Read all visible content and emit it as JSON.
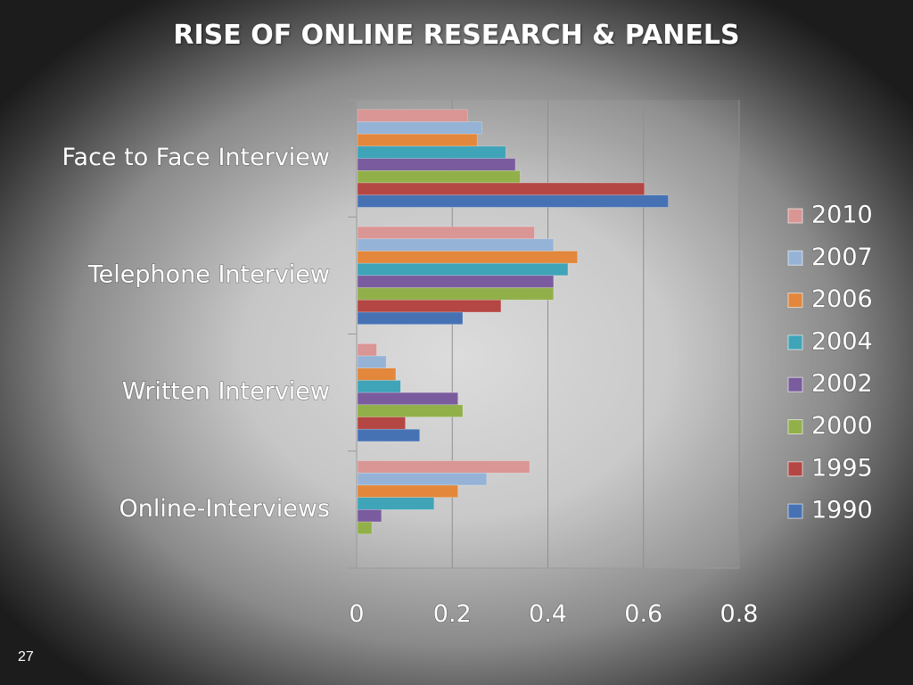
{
  "slide": {
    "title": "RISE OF ONLINE RESEARCH & PANELS",
    "number": "27"
  },
  "chart_data": {
    "type": "bar",
    "orientation": "horizontal",
    "title": "",
    "categories": [
      "Face to Face Interview",
      "Telephone Interview",
      "Written Interview",
      "Online-Interviews"
    ],
    "series": [
      {
        "name": "2010",
        "color": "#d99694",
        "values": [
          0.23,
          0.37,
          0.04,
          0.36
        ]
      },
      {
        "name": "2007",
        "color": "#95b3d7",
        "values": [
          0.26,
          0.41,
          0.06,
          0.27
        ]
      },
      {
        "name": "2006",
        "color": "#e2873b",
        "values": [
          0.25,
          0.46,
          0.08,
          0.21
        ]
      },
      {
        "name": "2004",
        "color": "#3fa4b8",
        "values": [
          0.31,
          0.44,
          0.09,
          0.16
        ]
      },
      {
        "name": "2002",
        "color": "#7a5c9e",
        "values": [
          0.33,
          0.41,
          0.21,
          0.05
        ]
      },
      {
        "name": "2000",
        "color": "#92b04a",
        "values": [
          0.34,
          0.41,
          0.22,
          0.03
        ]
      },
      {
        "name": "1995",
        "color": "#b44643",
        "values": [
          0.6,
          0.3,
          0.1,
          0
        ]
      },
      {
        "name": "1990",
        "color": "#4672b4",
        "values": [
          0.65,
          0.22,
          0.13,
          0
        ]
      }
    ],
    "xlim": [
      0,
      0.8
    ],
    "xticks": [
      "0",
      "0.2",
      "0.4",
      "0.6",
      "0.8"
    ],
    "grid": true,
    "legend": "right"
  }
}
